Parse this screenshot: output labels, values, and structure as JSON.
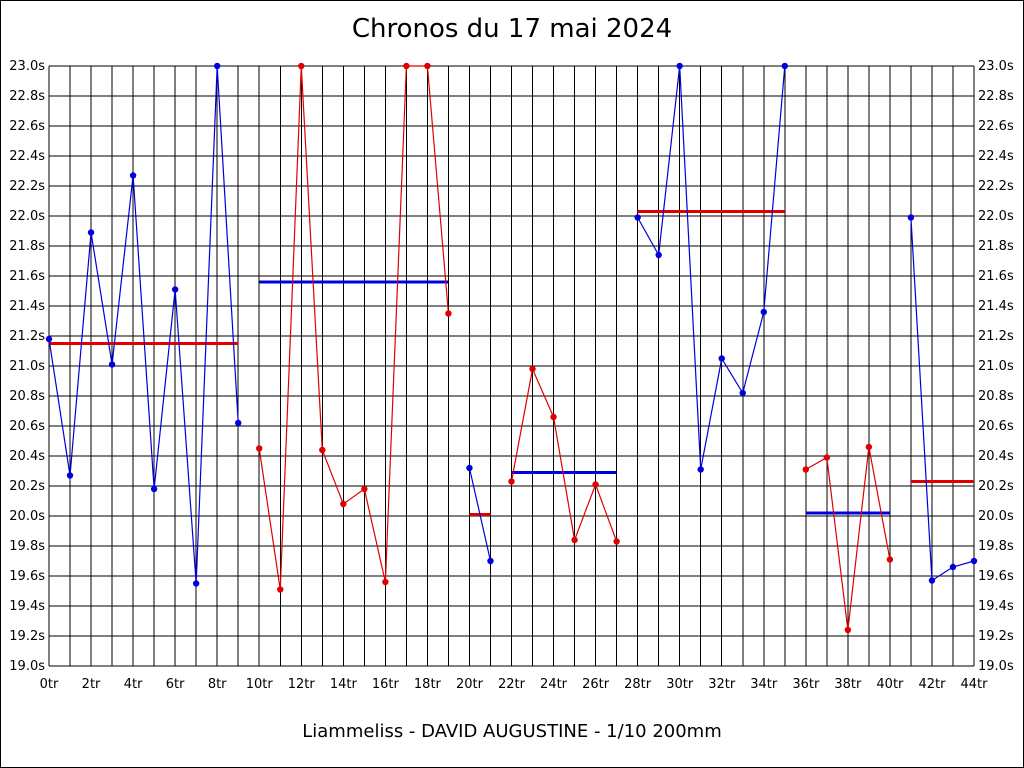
{
  "title": "Chronos du 17 mai 2024",
  "subtitle": "Liammeliss - DAVID AUGUSTINE - 1/10 200mm",
  "colors": {
    "blue": "#0000dd",
    "red": "#e00000",
    "grid": "#000000"
  },
  "chart_data": {
    "type": "line",
    "title": "Chronos du 17 mai 2024",
    "xlabel": "",
    "ylabel": "",
    "xlim": [
      0,
      44
    ],
    "ylim": [
      19.0,
      23.0
    ],
    "grid": true,
    "y_ticks": [
      "19.0s",
      "19.2s",
      "19.4s",
      "19.6s",
      "19.8s",
      "20.0s",
      "20.2s",
      "20.4s",
      "20.6s",
      "20.8s",
      "21.0s",
      "21.2s",
      "21.4s",
      "21.6s",
      "21.8s",
      "22.0s",
      "22.2s",
      "22.4s",
      "22.6s",
      "22.8s",
      "23.0s"
    ],
    "x_ticks": [
      "0tr",
      "2tr",
      "4tr",
      "6tr",
      "8tr",
      "10tr",
      "12tr",
      "14tr",
      "16tr",
      "18tr",
      "20tr",
      "22tr",
      "24tr",
      "26tr",
      "28tr",
      "30tr",
      "32tr",
      "34tr",
      "36tr",
      "38tr",
      "40tr",
      "42tr",
      "44tr"
    ],
    "series": [
      {
        "color": "#0000dd",
        "x": [
          0,
          1,
          2,
          3,
          4,
          5,
          6,
          7,
          8,
          9
        ],
        "y": [
          21.18,
          20.27,
          21.89,
          21.01,
          22.27,
          20.18,
          21.51,
          19.55,
          23.0,
          20.62
        ]
      },
      {
        "color": "#e00000",
        "x": [
          10,
          11,
          12,
          13,
          14,
          15,
          16,
          17,
          18,
          19
        ],
        "y": [
          20.45,
          19.51,
          23.0,
          20.44,
          20.08,
          20.18,
          19.56,
          23.0,
          23.0,
          21.35
        ]
      },
      {
        "color": "#0000dd",
        "x": [
          20,
          21
        ],
        "y": [
          20.32,
          19.7
        ]
      },
      {
        "color": "#e00000",
        "x": [
          22,
          23,
          24,
          25,
          26,
          27
        ],
        "y": [
          20.23,
          20.98,
          20.66,
          19.84,
          20.21,
          19.83
        ]
      },
      {
        "color": "#0000dd",
        "x": [
          28,
          29,
          30,
          31,
          32,
          33,
          34,
          35
        ],
        "y": [
          21.99,
          21.74,
          23.0,
          20.31,
          21.05,
          20.82,
          21.36,
          23.0
        ]
      },
      {
        "color": "#e00000",
        "x": [
          36,
          37,
          38,
          39,
          40
        ],
        "y": [
          20.31,
          20.39,
          19.24,
          20.46,
          19.71
        ]
      },
      {
        "color": "#0000dd",
        "x": [
          41,
          42,
          43,
          44
        ],
        "y": [
          21.99,
          19.57,
          19.66,
          19.7
        ]
      }
    ],
    "averages": [
      {
        "color": "#e00000",
        "x": [
          0,
          9
        ],
        "y": 21.15
      },
      {
        "color": "#0000dd",
        "x": [
          10,
          19
        ],
        "y": 21.56
      },
      {
        "color": "#e00000",
        "x": [
          20,
          21
        ],
        "y": 20.01
      },
      {
        "color": "#0000dd",
        "x": [
          22,
          27
        ],
        "y": 20.29
      },
      {
        "color": "#e00000",
        "x": [
          28,
          35
        ],
        "y": 22.03
      },
      {
        "color": "#0000dd",
        "x": [
          36,
          40
        ],
        "y": 20.02
      },
      {
        "color": "#e00000",
        "x": [
          41,
          44
        ],
        "y": 20.23
      }
    ]
  }
}
